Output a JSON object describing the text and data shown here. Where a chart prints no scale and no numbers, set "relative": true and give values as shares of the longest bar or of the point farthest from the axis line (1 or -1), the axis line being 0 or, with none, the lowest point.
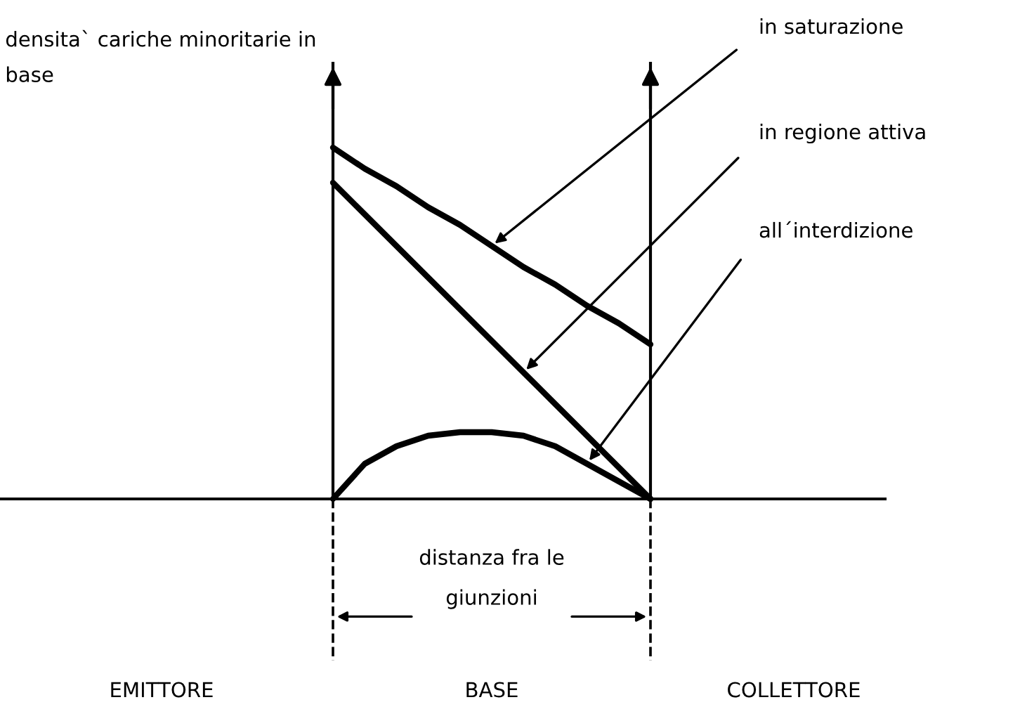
{
  "chart_data": {
    "type": "line",
    "relative": true,
    "ylabel": "densita` cariche minoritarie in base",
    "categories": [
      null,
      null,
      null,
      null,
      null,
      null,
      null,
      null,
      null,
      null,
      null
    ],
    "series": [
      {
        "name": "in saturazione",
        "color": "#000000",
        "values": [
          1,
          0.94,
          0.89,
          0.83,
          0.78,
          0.72,
          0.66,
          0.61,
          0.55,
          0.5,
          0.44
        ]
      },
      {
        "name": "in regione attiva",
        "color": "#000000",
        "values": [
          0.9,
          0.81,
          0.72,
          0.63,
          0.54,
          0.45,
          0.36,
          0.27,
          0.18,
          0.09,
          0
        ]
      },
      {
        "name": "all´interdizione",
        "color": "#000000",
        "values": [
          0,
          0.1,
          0.15,
          0.18,
          0.19,
          0.19,
          0.18,
          0.15,
          0.1,
          0.05,
          0
        ]
      }
    ],
    "annotations": [
      "distanza fra le giunzioni",
      "EMITTORE",
      "BASE",
      "COLLETTORE"
    ],
    "legend": false,
    "marker": "none",
    "line_style": "solid"
  }
}
